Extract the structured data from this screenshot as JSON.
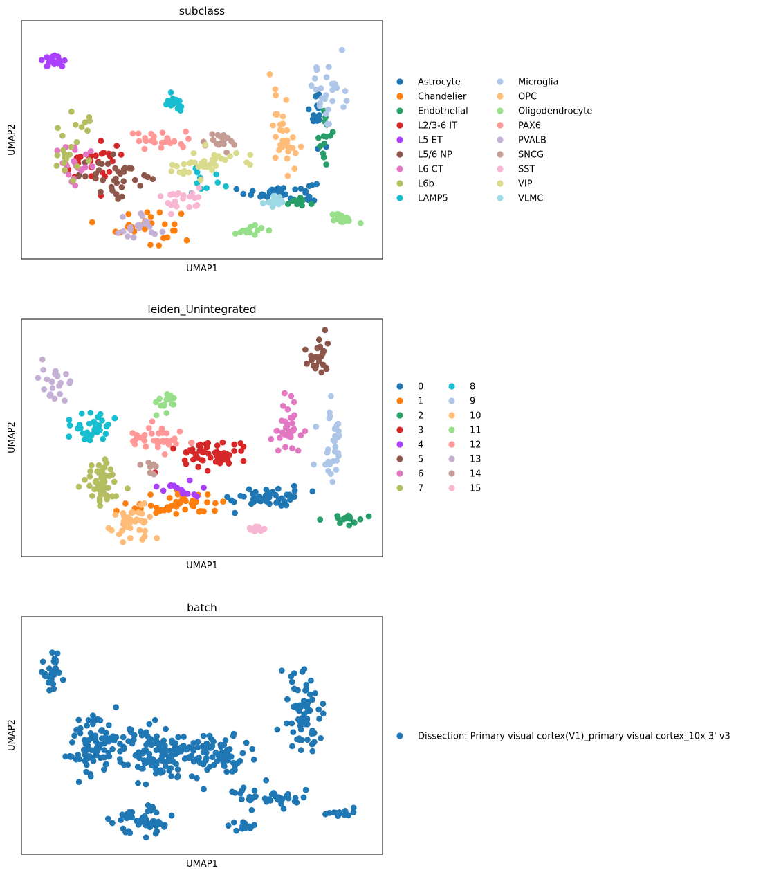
{
  "figure": {
    "panels": [
      {
        "id": "subclass",
        "title": "subclass",
        "xlabel": "UMAP1",
        "ylabel": "UMAP2",
        "legend": [
          {
            "label": "Astrocyte",
            "color": "#1f77b4"
          },
          {
            "label": "Chandelier",
            "color": "#ff7f0e"
          },
          {
            "label": "Endothelial",
            "color": "#279e68"
          },
          {
            "label": "L2/3-6 IT",
            "color": "#d62728"
          },
          {
            "label": "L5 ET",
            "color": "#aa40fc"
          },
          {
            "label": "L5/6 NP",
            "color": "#8c564b"
          },
          {
            "label": "L6 CT",
            "color": "#e377c2"
          },
          {
            "label": "L6b",
            "color": "#b5bd61"
          },
          {
            "label": "LAMP5",
            "color": "#17becf"
          },
          {
            "label": "Microglia",
            "color": "#aec7e8"
          },
          {
            "label": "OPC",
            "color": "#ffbb78"
          },
          {
            "label": "Oligodendrocyte",
            "color": "#98df8a"
          },
          {
            "label": "PAX6",
            "color": "#ff9896"
          },
          {
            "label": "PVALB",
            "color": "#c5b0d5"
          },
          {
            "label": "SNCG",
            "color": "#c49c94"
          },
          {
            "label": "SST",
            "color": "#f7b6d2"
          },
          {
            "label": "VIP",
            "color": "#dbdb8d"
          },
          {
            "label": "VLMC",
            "color": "#9edae5"
          }
        ]
      },
      {
        "id": "leiden",
        "title": "leiden_Unintegrated",
        "xlabel": "UMAP1",
        "ylabel": "UMAP2",
        "legend": [
          {
            "label": "0",
            "color": "#1f77b4"
          },
          {
            "label": "1",
            "color": "#ff7f0e"
          },
          {
            "label": "2",
            "color": "#279e68"
          },
          {
            "label": "3",
            "color": "#d62728"
          },
          {
            "label": "4",
            "color": "#aa40fc"
          },
          {
            "label": "5",
            "color": "#8c564b"
          },
          {
            "label": "6",
            "color": "#e377c2"
          },
          {
            "label": "7",
            "color": "#b5bd61"
          },
          {
            "label": "8",
            "color": "#17becf"
          },
          {
            "label": "9",
            "color": "#aec7e8"
          },
          {
            "label": "10",
            "color": "#ffbb78"
          },
          {
            "label": "11",
            "color": "#98df8a"
          },
          {
            "label": "12",
            "color": "#ff9896"
          },
          {
            "label": "13",
            "color": "#c5b0d5"
          },
          {
            "label": "14",
            "color": "#c49c94"
          },
          {
            "label": "15",
            "color": "#f7b6d2"
          }
        ]
      },
      {
        "id": "batch",
        "title": "batch",
        "xlabel": "UMAP1",
        "ylabel": "UMAP2",
        "legend": [
          {
            "label": "Dissection: Primary visual cortex(V1)_primary visual cortex_10x 3' v3",
            "color": "#1f77b4"
          }
        ]
      }
    ]
  },
  "chart_data": [
    {
      "type": "scatter",
      "title": "subclass",
      "xlabel": "UMAP1",
      "ylabel": "UMAP2",
      "ticks": "none",
      "legend_position": "right",
      "legend_columns": 2,
      "clusters": [
        {
          "category": "Astrocyte",
          "center": [
            0.72,
            0.28
          ],
          "spread": [
            0.09,
            0.04
          ],
          "count": 36
        },
        {
          "category": "Astrocyte",
          "center": [
            0.82,
            0.62
          ],
          "spread": [
            0.03,
            0.1
          ],
          "count": 16
        },
        {
          "category": "Chandelier",
          "center": [
            0.35,
            0.14
          ],
          "spread": [
            0.08,
            0.07
          ],
          "count": 30
        },
        {
          "category": "Endothelial",
          "center": [
            0.76,
            0.24
          ],
          "spread": [
            0.03,
            0.02
          ],
          "count": 10
        },
        {
          "category": "Endothelial",
          "center": [
            0.84,
            0.52
          ],
          "spread": [
            0.02,
            0.12
          ],
          "count": 14
        },
        {
          "category": "L2/3-6 IT",
          "center": [
            0.2,
            0.4
          ],
          "spread": [
            0.08,
            0.08
          ],
          "count": 30
        },
        {
          "category": "L5 ET",
          "center": [
            0.09,
            0.83
          ],
          "spread": [
            0.03,
            0.02
          ],
          "count": 18
        },
        {
          "category": "L5/6 NP",
          "center": [
            0.26,
            0.35
          ],
          "spread": [
            0.09,
            0.07
          ],
          "count": 36
        },
        {
          "category": "L6 CT",
          "center": [
            0.16,
            0.38
          ],
          "spread": [
            0.06,
            0.09
          ],
          "count": 22
        },
        {
          "category": "L6b",
          "center": [
            0.14,
            0.48
          ],
          "spread": [
            0.07,
            0.12
          ],
          "count": 24
        },
        {
          "category": "LAMP5",
          "center": [
            0.42,
            0.65
          ],
          "spread": [
            0.02,
            0.03
          ],
          "count": 14
        },
        {
          "category": "LAMP5",
          "center": [
            0.51,
            0.32
          ],
          "spread": [
            0.07,
            0.06
          ],
          "count": 10
        },
        {
          "category": "Microglia",
          "center": [
            0.85,
            0.7
          ],
          "spread": [
            0.04,
            0.15
          ],
          "count": 30
        },
        {
          "category": "OPC",
          "center": [
            0.73,
            0.55
          ],
          "spread": [
            0.04,
            0.15
          ],
          "count": 34
        },
        {
          "category": "Oligodendrocyte",
          "center": [
            0.89,
            0.17
          ],
          "spread": [
            0.03,
            0.02
          ],
          "count": 16
        },
        {
          "category": "Oligodendrocyte",
          "center": [
            0.64,
            0.12
          ],
          "spread": [
            0.03,
            0.02
          ],
          "count": 12
        },
        {
          "category": "PAX6",
          "center": [
            0.38,
            0.5
          ],
          "spread": [
            0.08,
            0.04
          ],
          "count": 24
        },
        {
          "category": "PVALB",
          "center": [
            0.32,
            0.12
          ],
          "spread": [
            0.06,
            0.05
          ],
          "count": 20
        },
        {
          "category": "SNCG",
          "center": [
            0.55,
            0.49
          ],
          "spread": [
            0.05,
            0.04
          ],
          "count": 18
        },
        {
          "category": "SST",
          "center": [
            0.45,
            0.25
          ],
          "spread": [
            0.06,
            0.05
          ],
          "count": 20
        },
        {
          "category": "VIP",
          "center": [
            0.5,
            0.4
          ],
          "spread": [
            0.09,
            0.06
          ],
          "count": 36
        },
        {
          "category": "VLMC",
          "center": [
            0.7,
            0.24
          ],
          "spread": [
            0.05,
            0.03
          ],
          "count": 12
        }
      ]
    },
    {
      "type": "scatter",
      "title": "leiden_Unintegrated",
      "xlabel": "UMAP1",
      "ylabel": "UMAP2",
      "ticks": "none",
      "legend_position": "right",
      "legend_columns": 2,
      "clusters": [
        {
          "category": "0",
          "center": [
            0.68,
            0.25
          ],
          "spread": [
            0.09,
            0.04
          ],
          "count": 42
        },
        {
          "category": "1",
          "center": [
            0.43,
            0.22
          ],
          "spread": [
            0.12,
            0.05
          ],
          "count": 44
        },
        {
          "category": "2",
          "center": [
            0.9,
            0.16
          ],
          "spread": [
            0.04,
            0.02
          ],
          "count": 16
        },
        {
          "category": "3",
          "center": [
            0.53,
            0.43
          ],
          "spread": [
            0.09,
            0.06
          ],
          "count": 58
        },
        {
          "category": "4",
          "center": [
            0.43,
            0.28
          ],
          "spread": [
            0.06,
            0.03
          ],
          "count": 14
        },
        {
          "category": "5",
          "center": [
            0.82,
            0.85
          ],
          "spread": [
            0.03,
            0.07
          ],
          "count": 26
        },
        {
          "category": "6",
          "center": [
            0.74,
            0.55
          ],
          "spread": [
            0.04,
            0.12
          ],
          "count": 34
        },
        {
          "category": "7",
          "center": [
            0.22,
            0.3
          ],
          "spread": [
            0.05,
            0.1
          ],
          "count": 50
        },
        {
          "category": "8",
          "center": [
            0.19,
            0.55
          ],
          "spread": [
            0.05,
            0.06
          ],
          "count": 36
        },
        {
          "category": "9",
          "center": [
            0.86,
            0.47
          ],
          "spread": [
            0.03,
            0.15
          ],
          "count": 30
        },
        {
          "category": "10",
          "center": [
            0.31,
            0.14
          ],
          "spread": [
            0.06,
            0.06
          ],
          "count": 36
        },
        {
          "category": "11",
          "center": [
            0.4,
            0.65
          ],
          "spread": [
            0.03,
            0.04
          ],
          "count": 14
        },
        {
          "category": "12",
          "center": [
            0.38,
            0.5
          ],
          "spread": [
            0.07,
            0.04
          ],
          "count": 34
        },
        {
          "category": "13",
          "center": [
            0.09,
            0.75
          ],
          "spread": [
            0.04,
            0.08
          ],
          "count": 22
        },
        {
          "category": "14",
          "center": [
            0.35,
            0.37
          ],
          "spread": [
            0.03,
            0.04
          ],
          "count": 8
        },
        {
          "category": "15",
          "center": [
            0.64,
            0.11
          ],
          "spread": [
            0.03,
            0.02
          ],
          "count": 10
        }
      ]
    },
    {
      "type": "scatter",
      "title": "batch",
      "xlabel": "UMAP1",
      "ylabel": "UMAP2",
      "ticks": "none",
      "legend_position": "right",
      "legend_columns": 1,
      "clusters": [
        {
          "category": "Dissection: Primary visual cortex(V1)_primary visual cortex_10x 3' v3",
          "center": [
            0.09,
            0.78
          ],
          "spread": [
            0.04,
            0.09
          ],
          "count": 30
        },
        {
          "category": "Dissection: Primary visual cortex(V1)_primary visual cortex_10x 3' v3",
          "center": [
            0.2,
            0.45
          ],
          "spread": [
            0.06,
            0.12
          ],
          "count": 90
        },
        {
          "category": "Dissection: Primary visual cortex(V1)_primary visual cortex_10x 3' v3",
          "center": [
            0.38,
            0.42
          ],
          "spread": [
            0.1,
            0.1
          ],
          "count": 120
        },
        {
          "category": "Dissection: Primary visual cortex(V1)_primary visual cortex_10x 3' v3",
          "center": [
            0.55,
            0.42
          ],
          "spread": [
            0.08,
            0.08
          ],
          "count": 70
        },
        {
          "category": "Dissection: Primary visual cortex(V1)_primary visual cortex_10x 3' v3",
          "center": [
            0.33,
            0.14
          ],
          "spread": [
            0.07,
            0.06
          ],
          "count": 50
        },
        {
          "category": "Dissection: Primary visual cortex(V1)_primary visual cortex_10x 3' v3",
          "center": [
            0.68,
            0.24
          ],
          "spread": [
            0.09,
            0.04
          ],
          "count": 40
        },
        {
          "category": "Dissection: Primary visual cortex(V1)_primary visual cortex_10x 3' v3",
          "center": [
            0.78,
            0.6
          ],
          "spread": [
            0.05,
            0.16
          ],
          "count": 70
        },
        {
          "category": "Dissection: Primary visual cortex(V1)_primary visual cortex_10x 3' v3",
          "center": [
            0.88,
            0.17
          ],
          "spread": [
            0.04,
            0.02
          ],
          "count": 14
        },
        {
          "category": "Dissection: Primary visual cortex(V1)_primary visual cortex_10x 3' v3",
          "center": [
            0.62,
            0.12
          ],
          "spread": [
            0.03,
            0.02
          ],
          "count": 12
        }
      ]
    }
  ]
}
